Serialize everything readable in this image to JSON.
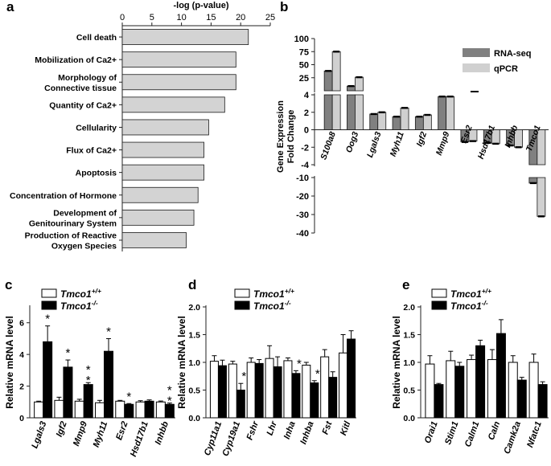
{
  "panel_labels": [
    "a",
    "b",
    "c",
    "d",
    "e"
  ],
  "chart_data": [
    {
      "panel": "a",
      "type": "bar",
      "orientation": "horizontal",
      "xlabel": "-log (p-value)",
      "xlim": [
        0,
        25
      ],
      "ticks": [
        0,
        5,
        10,
        15,
        20,
        25
      ],
      "categories": [
        [
          "Cell death"
        ],
        [
          "Mobilization of Ca2+"
        ],
        [
          "Morphology of",
          "Connective tissue"
        ],
        [
          "Quantity of Ca2+"
        ],
        [
          "Cellularity"
        ],
        [
          "Flux of Ca2+"
        ],
        [
          "Apoptosis"
        ],
        [
          "Concentration of Hormone"
        ],
        [
          "Development of",
          "Genitourinary System"
        ],
        [
          "Production of Reactive",
          "Oxygen Species"
        ]
      ],
      "values": [
        21.3,
        19.2,
        19.2,
        17.3,
        14.6,
        13.8,
        13.8,
        12.8,
        12.1,
        10.8
      ],
      "colors": {
        "bar": "#d3d3d3",
        "edge": "#1a1a1a"
      }
    },
    {
      "panel": "b",
      "type": "bar",
      "ylabel": [
        "Gene Expression",
        "Fold Change"
      ],
      "axis_break": true,
      "ticks_upper": [
        25,
        50,
        75,
        100
      ],
      "ticks_middle": [
        -4,
        -2,
        0,
        2,
        4
      ],
      "ticks_lower": [
        -40,
        -30,
        -20,
        -10
      ],
      "categories": [
        "S100a8",
        "Oog3",
        "Lgals3",
        "Myh11",
        "Igf2",
        "Mmp9",
        "Esr2",
        "Hsd17b1",
        "Inhbb",
        "Tmco1"
      ],
      "series": [
        {
          "name": "RNA-seq",
          "values": [
            38,
            9,
            1.8,
            1.5,
            1.5,
            3.8,
            -1.4,
            -1.5,
            -1.8,
            -13
          ],
          "color": "#808080"
        },
        {
          "name": "qPCR",
          "values": [
            75,
            26,
            2.0,
            2.5,
            1.7,
            3.8,
            -1.3,
            -1.6,
            -2.0,
            -31
          ],
          "color": "#d0d0d0"
        }
      ]
    },
    {
      "panel": "c",
      "type": "bar",
      "ylabel": "Relative mRNA level",
      "ylim": [
        0,
        7
      ],
      "ticks": [
        0,
        2,
        4,
        6
      ],
      "legend": [
        "Tmco1",
        "Tmco1"
      ],
      "legend_sup": [
        "+/+",
        "-/-"
      ],
      "categories": [
        "Lgals3",
        "Igf2",
        "Mmp9",
        "Myh11",
        "Esr2",
        "Hsd17b1",
        "Inhbb"
      ],
      "series": [
        {
          "values": [
            1.0,
            1.1,
            1.05,
            0.95,
            1.05,
            1.0,
            1.0
          ],
          "errors": [
            0.05,
            0.2,
            0.12,
            0.15,
            0.05,
            0.08,
            0.06
          ],
          "color": "#ffffff"
        },
        {
          "values": [
            4.8,
            3.2,
            2.1,
            4.2,
            0.85,
            1.05,
            0.85
          ],
          "errors": [
            1.0,
            0.45,
            0.12,
            0.8,
            0.05,
            0.08,
            0.08
          ],
          "color": "#000000"
        }
      ],
      "significance": [
        "*",
        "*",
        "**",
        "*",
        "*",
        "",
        "**"
      ]
    },
    {
      "panel": "d",
      "type": "bar",
      "ylabel": "Relative mRNA level",
      "ylim": [
        0,
        2.0
      ],
      "ticks": [
        "0.0",
        "0.5",
        "1.0",
        "1.5",
        "2.0"
      ],
      "legend": [
        "Tmco1",
        "Tmco1"
      ],
      "legend_sup": [
        "+/+",
        "-/-"
      ],
      "categories": [
        "Cyp11a1",
        "Cyp19a1",
        "Fshr",
        "Lhr",
        "Inha",
        "Inhba",
        "Fst",
        "Kitl"
      ],
      "series": [
        {
          "values": [
            1.02,
            0.97,
            1.0,
            1.07,
            1.03,
            0.95,
            1.1,
            1.17
          ],
          "errors": [
            0.1,
            0.05,
            0.08,
            0.23,
            0.05,
            0.05,
            0.13,
            0.33
          ],
          "color": "#ffffff"
        },
        {
          "values": [
            0.94,
            0.5,
            0.98,
            0.92,
            0.8,
            0.63,
            0.73,
            1.42
          ],
          "errors": [
            0.1,
            0.12,
            0.07,
            0.18,
            0.05,
            0.04,
            0.1,
            0.15
          ],
          "color": "#000000"
        }
      ],
      "significance": [
        "",
        "*",
        "",
        "",
        "*",
        "*",
        "",
        ""
      ]
    },
    {
      "panel": "e",
      "type": "bar",
      "ylabel": "Relative mRNA level",
      "ylim": [
        0,
        2.0
      ],
      "ticks": [
        "0.0",
        "0.5",
        "1.0",
        "1.5",
        "2.0"
      ],
      "legend": [
        "Tmco1",
        "Tmco1"
      ],
      "legend_sup": [
        "+/+",
        "-/-"
      ],
      "categories": [
        "Orai1",
        "Stim1",
        "Calm1",
        "Caln",
        "Camk2a",
        "Nfatc1"
      ],
      "series": [
        {
          "values": [
            0.97,
            1.03,
            1.05,
            1.05,
            1.0,
            1.0
          ],
          "errors": [
            0.15,
            0.17,
            0.08,
            0.18,
            0.12,
            0.15
          ],
          "color": "#ffffff"
        },
        {
          "values": [
            0.6,
            0.93,
            1.3,
            1.52,
            0.68,
            0.6
          ],
          "errors": [
            0.02,
            0.07,
            0.1,
            0.25,
            0.05,
            0.05
          ],
          "color": "#000000"
        }
      ]
    }
  ]
}
